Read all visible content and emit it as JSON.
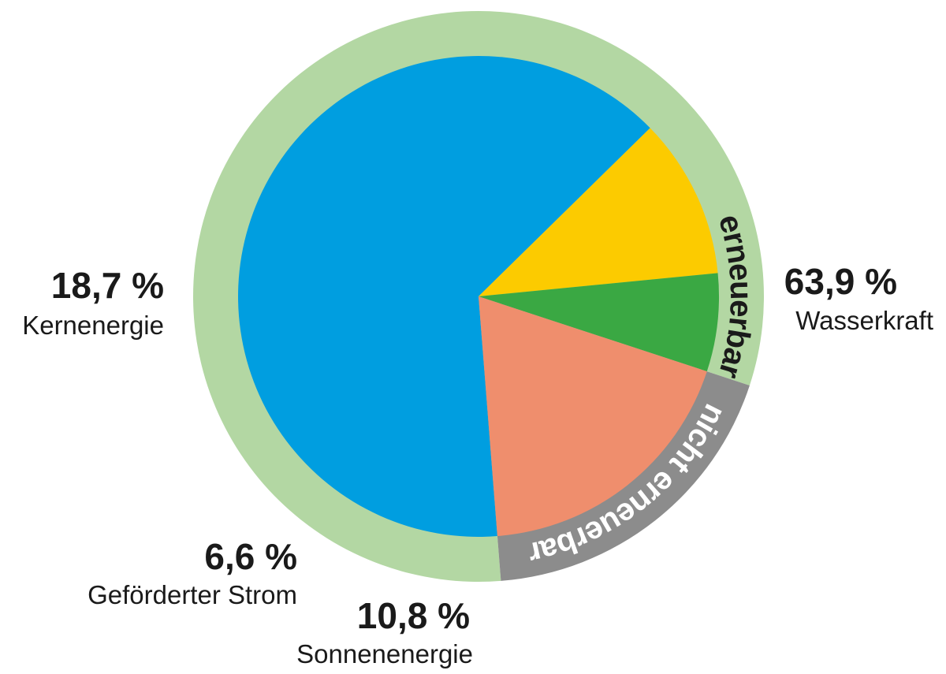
{
  "chart_data": {
    "type": "pie",
    "slices": [
      {
        "label": "Wasserkraft",
        "value_label": "63,9 %",
        "value": 63.9,
        "color": "#009EE0"
      },
      {
        "label": "Sonnenenergie",
        "value_label": "10,8 %",
        "value": 10.8,
        "color": "#FCCB00"
      },
      {
        "label": "Geförderter Strom",
        "value_label": "6,6 %",
        "value": 6.6,
        "color": "#3AA843"
      },
      {
        "label": "Kernenergie",
        "value_label": "18,7 %",
        "value": 18.7,
        "color": "#EF8E6D"
      }
    ],
    "ring": [
      {
        "label": "erneuerbar",
        "value": 81.3,
        "color": "#B3D7A3",
        "text_color": "#1a1a1a"
      },
      {
        "label": "nicht erneuerbar",
        "value": 18.7,
        "color": "#8C8C8C",
        "text_color": "#ffffff"
      }
    ]
  }
}
